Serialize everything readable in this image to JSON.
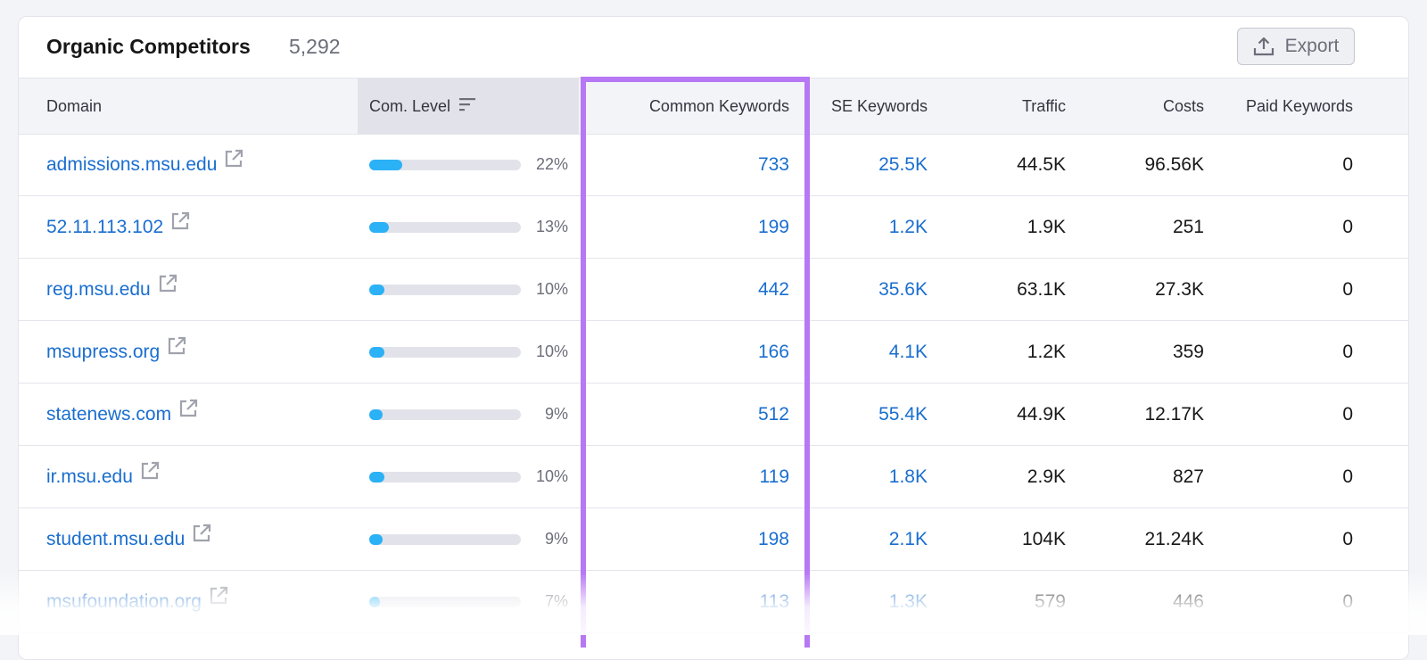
{
  "header": {
    "title": "Organic Competitors",
    "count": "5,292",
    "export_label": "Export"
  },
  "columns": {
    "domain": "Domain",
    "com_level": "Com. Level",
    "common_keywords": "Common Keywords",
    "se_keywords": "SE Keywords",
    "traffic": "Traffic",
    "costs": "Costs",
    "paid_keywords": "Paid Keywords"
  },
  "rows": [
    {
      "domain": "admissions.msu.edu",
      "com_level_pct": "22%",
      "com_level_value": 22,
      "common_keywords": "733",
      "se_keywords": "25.5K",
      "traffic": "44.5K",
      "costs": "96.56K",
      "paid_keywords": "0"
    },
    {
      "domain": "52.11.113.102",
      "com_level_pct": "13%",
      "com_level_value": 13,
      "common_keywords": "199",
      "se_keywords": "1.2K",
      "traffic": "1.9K",
      "costs": "251",
      "paid_keywords": "0"
    },
    {
      "domain": "reg.msu.edu",
      "com_level_pct": "10%",
      "com_level_value": 10,
      "common_keywords": "442",
      "se_keywords": "35.6K",
      "traffic": "63.1K",
      "costs": "27.3K",
      "paid_keywords": "0"
    },
    {
      "domain": "msupress.org",
      "com_level_pct": "10%",
      "com_level_value": 10,
      "common_keywords": "166",
      "se_keywords": "4.1K",
      "traffic": "1.2K",
      "costs": "359",
      "paid_keywords": "0"
    },
    {
      "domain": "statenews.com",
      "com_level_pct": "9%",
      "com_level_value": 9,
      "common_keywords": "512",
      "se_keywords": "55.4K",
      "traffic": "44.9K",
      "costs": "12.17K",
      "paid_keywords": "0"
    },
    {
      "domain": "ir.msu.edu",
      "com_level_pct": "10%",
      "com_level_value": 10,
      "common_keywords": "119",
      "se_keywords": "1.8K",
      "traffic": "2.9K",
      "costs": "827",
      "paid_keywords": "0"
    },
    {
      "domain": "student.msu.edu",
      "com_level_pct": "9%",
      "com_level_value": 9,
      "common_keywords": "198",
      "se_keywords": "2.1K",
      "traffic": "104K",
      "costs": "21.24K",
      "paid_keywords": "0"
    },
    {
      "domain": "msufoundation.org",
      "com_level_pct": "7%",
      "com_level_value": 7,
      "common_keywords": "113",
      "se_keywords": "1.3K",
      "traffic": "579",
      "costs": "446",
      "paid_keywords": "0"
    }
  ],
  "colors": {
    "link": "#1a6ecf",
    "bar_fill": "#2bb1f5",
    "bar_track": "#e2e3ea",
    "highlight": "#b678f5"
  },
  "icons": {
    "export": "upload-icon",
    "sort": "sort-descending-icon",
    "external_link": "external-link-icon"
  }
}
